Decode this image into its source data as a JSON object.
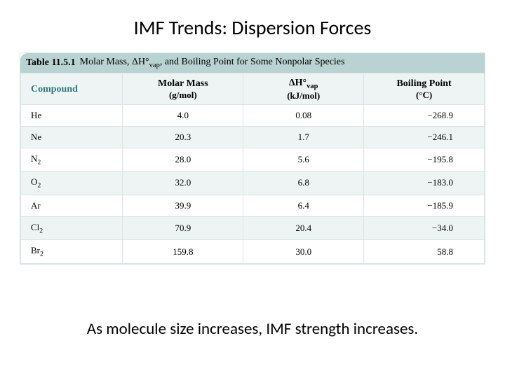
{
  "title": "IMF Trends: Dispersion Forces",
  "table": {
    "number": "Table 11.5.1",
    "caption_html": "Molar Mass, ΔH°<sub>vap</sub>, and Boiling Point for Some Nonpolar Species",
    "caption_bg": "#b9d3d3",
    "caption_color": "#000000",
    "header_bg": "#eef4f4",
    "compound_header_color": "#2a7a7a",
    "border_color": "#d8e4e4",
    "columns": [
      {
        "main": "Compound",
        "sub": ""
      },
      {
        "main": "Molar Mass",
        "sub": "(g/mol)"
      },
      {
        "main_html": "ΔH°<sub>vap</sub>",
        "sub": "(kJ/mol)"
      },
      {
        "main": "Boiling Point",
        "sub": "(°C)"
      }
    ],
    "rows": [
      {
        "compound_html": "He",
        "mass": "4.0",
        "hvap": "0.08",
        "bp": "−268.9"
      },
      {
        "compound_html": "Ne",
        "mass": "20.3",
        "hvap": "1.7",
        "bp": "−246.1"
      },
      {
        "compound_html": "N<sub>2</sub>",
        "mass": "28.0",
        "hvap": "5.6",
        "bp": "−195.8"
      },
      {
        "compound_html": "O<sub>2</sub>",
        "mass": "32.0",
        "hvap": "6.8",
        "bp": "−183.0"
      },
      {
        "compound_html": "Ar",
        "mass": "39.9",
        "hvap": "6.4",
        "bp": "−185.9"
      },
      {
        "compound_html": "Cl<sub>2</sub>",
        "mass": "70.9",
        "hvap": "20.4",
        "bp": "−34.0"
      },
      {
        "compound_html": "Br<sub>2</sub>",
        "mass": "159.8",
        "hvap": "30.0",
        "bp": "58.8"
      }
    ]
  },
  "footer": "As molecule size increases, IMF strength increases."
}
